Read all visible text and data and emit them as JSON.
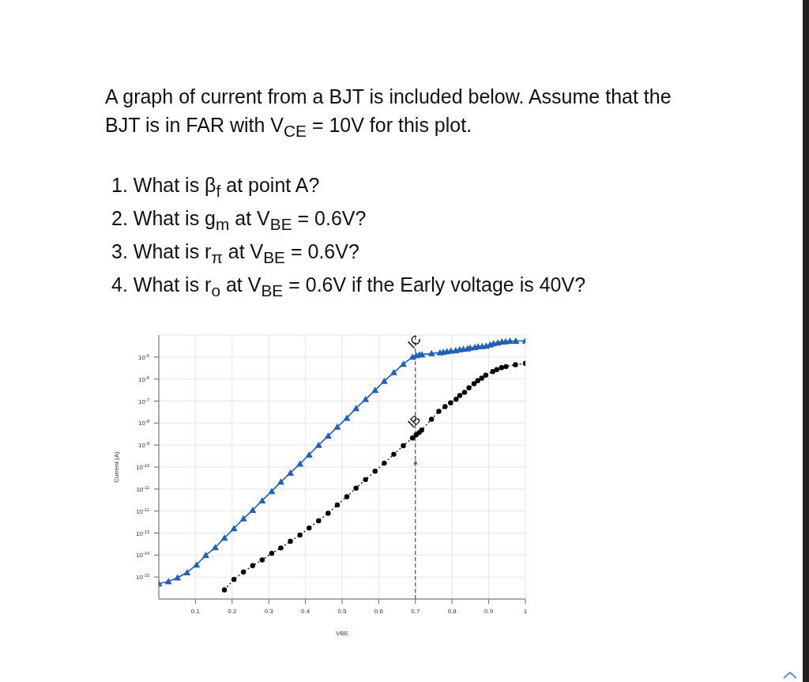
{
  "chart_data": {
    "type": "line",
    "title": "A graph of current from a BJT is included below. Assume that the BJT is in FAR with V$_{CE}$ = 10V for this plot.",
    "annotations": [
      "1. What is β$_{f}$ at point A?",
      "2. What is g$_{m}$ at V$_{BE}$ = 0.6V?",
      "3. What is r$_{π}$ at V$_{BE}$ = 0.6V?",
      "4. What is r$_{o}$ at V$_{BE}$ = 0.6V if the Early voltage is 40V?"
    ],
    "xlabel": "VBE",
    "ylabel": "Current (A)",
    "log": "y",
    "grid": true,
    "xlim": [
      0,
      1
    ],
    "xticks": [
      0.1,
      0.2,
      0.3,
      0.4,
      0.5,
      0.6,
      0.7,
      0.8,
      0.9,
      1
    ],
    "ylim": [
      1e-16,
      0.0001
    ],
    "yticks": [
      {
        "value": 1e-05,
        "label": "10$^{-5}$"
      },
      {
        "value": 1e-06,
        "label": "10$^{-6}$"
      },
      {
        "value": 1e-07,
        "label": "10$^{-7}$"
      },
      {
        "value": 1e-08,
        "label": "10$^{-8}$"
      },
      {
        "value": 1e-09,
        "label": "10$^{-9}$"
      },
      {
        "value": 1e-10,
        "label": "10$^{-10}$"
      },
      {
        "value": 1e-11,
        "label": "10$^{-11}$"
      },
      {
        "value": 1e-12,
        "label": "10$^{-12}$"
      },
      {
        "value": 1e-13,
        "label": "10$^{-13}$"
      },
      {
        "value": 1e-14,
        "label": "10$^{-14}$"
      },
      {
        "value": 1e-15,
        "label": "10$^{-15}$"
      }
    ],
    "ref_lines": [
      {
        "axis": "x",
        "value": 0.7,
        "label": "A",
        "line_style": "dashed",
        "color": "#333333"
      }
    ],
    "series": [
      {
        "name": "IC",
        "color": "#1f5fbf",
        "marker": "triangle",
        "line_style": "solid",
        "x": [
          0,
          0.026,
          0.051,
          0.077,
          0.103,
          0.128,
          0.154,
          0.179,
          0.205,
          0.231,
          0.256,
          0.282,
          0.308,
          0.333,
          0.359,
          0.385,
          0.41,
          0.436,
          0.462,
          0.487,
          0.513,
          0.538,
          0.564,
          0.59,
          0.615,
          0.641,
          0.667,
          0.692,
          0.702,
          0.711,
          0.718,
          0.744,
          0.767,
          0.776,
          0.786,
          0.797,
          0.81,
          0.821,
          0.831,
          0.842,
          0.849,
          0.862,
          0.871,
          0.882,
          0.893,
          0.904,
          0.913,
          0.925,
          0.936,
          0.946,
          0.958,
          0.974,
          1
        ],
        "values": [
          5e-16,
          6.3e-16,
          9.3e-16,
          1.6e-15,
          3.6e-15,
          9.8e-15,
          2.2e-14,
          6e-14,
          1.6e-13,
          4.5e-13,
          1.1e-12,
          3e-12,
          7.9e-12,
          2.1e-11,
          5.4e-11,
          1.4e-10,
          3.6e-10,
          1e-09,
          2.6e-09,
          6.6e-09,
          1.7e-08,
          4.7e-08,
          1.2e-07,
          3.1e-07,
          8.1e-07,
          2e-06,
          4.8e-06,
          1e-05,
          1.2e-05,
          1.3e-05,
          1.3e-05,
          1.45e-05,
          1.6e-05,
          1.7e-05,
          1.8e-05,
          1.9e-05,
          2e-05,
          2.2e-05,
          2.3e-05,
          2.4e-05,
          2.6e-05,
          2.8e-05,
          3e-05,
          3.1e-05,
          3.2e-05,
          3.6e-05,
          4.1e-05,
          4.5e-05,
          4.9e-05,
          5.1e-05,
          5.4e-05,
          5.4e-05,
          5.5e-05
        ]
      },
      {
        "name": "IB",
        "color": "#000000",
        "marker": "circle",
        "line_style": "dotted",
        "x": [
          0.179,
          0.205,
          0.231,
          0.256,
          0.282,
          0.308,
          0.333,
          0.359,
          0.385,
          0.41,
          0.436,
          0.462,
          0.487,
          0.513,
          0.538,
          0.564,
          0.59,
          0.615,
          0.641,
          0.667,
          0.692,
          0.702,
          0.71,
          0.717,
          0.744,
          0.764,
          0.781,
          0.796,
          0.811,
          0.821,
          0.834,
          0.846,
          0.86,
          0.87,
          0.881,
          0.892,
          0.911,
          0.922,
          0.935,
          0.947,
          0.973,
          1
        ],
        "values": [
          2.6e-16,
          7.8e-16,
          1.7e-15,
          3.3e-15,
          6e-15,
          1.2e-14,
          2.1e-14,
          4.2e-14,
          8.1e-14,
          1.7e-13,
          3.6e-13,
          7.9e-13,
          1.9e-12,
          4.5e-12,
          1.1e-11,
          2.7e-11,
          6.5e-11,
          1.5e-10,
          3.8e-10,
          9.3e-10,
          2.1e-09,
          2.9e-09,
          3.7e-09,
          4.8e-09,
          1.5e-08,
          3.4e-08,
          5.6e-08,
          8.3e-08,
          1.2e-07,
          1.8e-07,
          2.5e-07,
          4e-07,
          6.2e-07,
          8.5e-07,
          1.1e-06,
          1.5e-06,
          2.2e-06,
          2.7e-06,
          3.3e-06,
          3.7e-06,
          4.5e-06,
          5.2e-06
        ]
      }
    ]
  }
}
